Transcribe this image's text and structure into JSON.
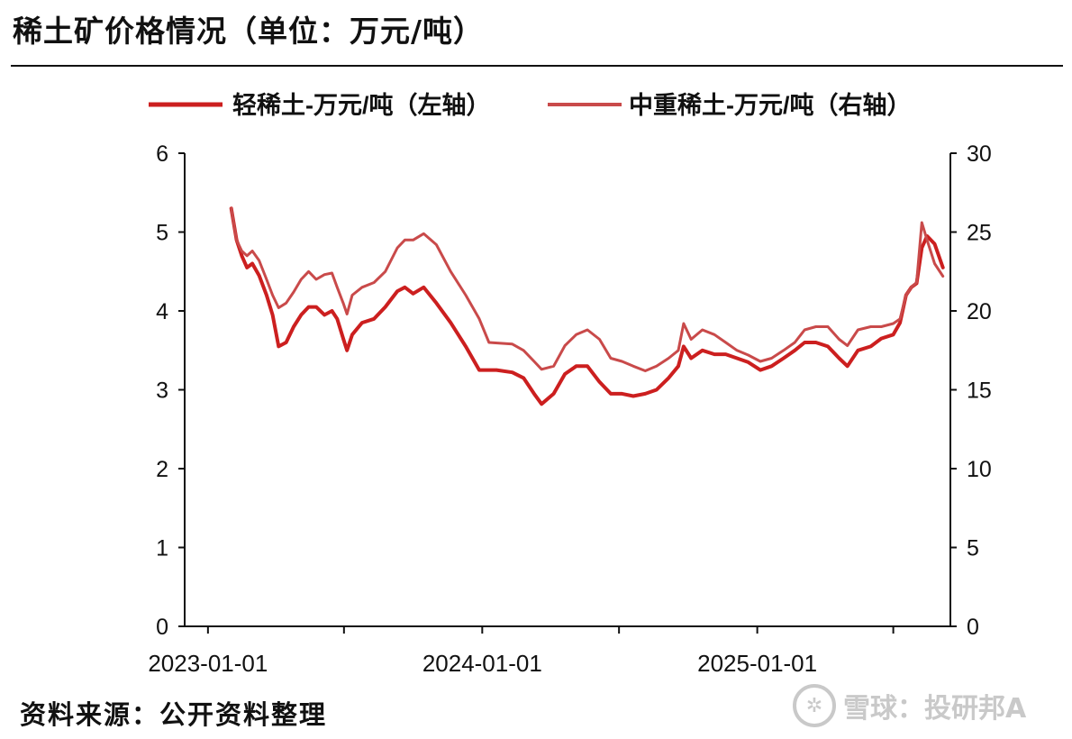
{
  "title": "稀土矿价格情况（单位：万元/吨）",
  "source": "资料来源：公开资料整理",
  "watermark": {
    "logo_icon": "snowball-logo-icon",
    "text": "雪球：投研邦A"
  },
  "colors": {
    "light_series": "#cc1f1f",
    "heavy_series": "#c94a4a",
    "axis": "#111111"
  },
  "chart_data": {
    "type": "line",
    "title": "",
    "legend_position": "top-center",
    "grid": false,
    "x_tick_labels": [
      "2023-01-01",
      "2024-01-01",
      "2025-01-01"
    ],
    "x_ticks": [
      "2023-01-01",
      "2023-07-01",
      "2024-01-01",
      "2024-07-01",
      "2025-01-01",
      "2025-07-01"
    ],
    "xlim": [
      "2022-12-01",
      "2025-09-15"
    ],
    "y_left": {
      "lim": [
        0,
        6
      ],
      "ticks": [
        0,
        1,
        2,
        3,
        4,
        5,
        6
      ]
    },
    "y_right": {
      "lim": [
        0,
        30
      ],
      "ticks": [
        0,
        5,
        10,
        15,
        20,
        25,
        30
      ]
    },
    "series": [
      {
        "name": "轻稀土-万元/吨（左轴）",
        "axis": "left",
        "points": [
          [
            "2023-02-01",
            5.3
          ],
          [
            "2023-02-08",
            4.9
          ],
          [
            "2023-02-15",
            4.7
          ],
          [
            "2023-02-22",
            4.55
          ],
          [
            "2023-03-01",
            4.6
          ],
          [
            "2023-03-10",
            4.45
          ],
          [
            "2023-03-20",
            4.2
          ],
          [
            "2023-03-28",
            3.95
          ],
          [
            "2023-04-05",
            3.55
          ],
          [
            "2023-04-15",
            3.6
          ],
          [
            "2023-04-25",
            3.8
          ],
          [
            "2023-05-05",
            3.95
          ],
          [
            "2023-05-15",
            4.05
          ],
          [
            "2023-05-25",
            4.05
          ],
          [
            "2023-06-05",
            3.95
          ],
          [
            "2023-06-15",
            4.0
          ],
          [
            "2023-06-22",
            3.9
          ],
          [
            "2023-06-30",
            3.65
          ],
          [
            "2023-07-05",
            3.5
          ],
          [
            "2023-07-12",
            3.7
          ],
          [
            "2023-07-25",
            3.85
          ],
          [
            "2023-08-10",
            3.9
          ],
          [
            "2023-08-25",
            4.05
          ],
          [
            "2023-09-10",
            4.25
          ],
          [
            "2023-09-20",
            4.3
          ],
          [
            "2023-10-01",
            4.22
          ],
          [
            "2023-10-15",
            4.3
          ],
          [
            "2023-11-01",
            4.1
          ],
          [
            "2023-11-20",
            3.85
          ],
          [
            "2023-12-10",
            3.55
          ],
          [
            "2023-12-28",
            3.25
          ],
          [
            "2024-01-20",
            3.25
          ],
          [
            "2024-02-10",
            3.22
          ],
          [
            "2024-02-25",
            3.15
          ],
          [
            "2024-03-10",
            2.95
          ],
          [
            "2024-03-20",
            2.82
          ],
          [
            "2024-04-05",
            2.95
          ],
          [
            "2024-04-20",
            3.2
          ],
          [
            "2024-05-05",
            3.3
          ],
          [
            "2024-05-20",
            3.3
          ],
          [
            "2024-06-05",
            3.1
          ],
          [
            "2024-06-20",
            2.95
          ],
          [
            "2024-07-05",
            2.95
          ],
          [
            "2024-07-20",
            2.92
          ],
          [
            "2024-08-05",
            2.95
          ],
          [
            "2024-08-20",
            3.0
          ],
          [
            "2024-09-05",
            3.15
          ],
          [
            "2024-09-18",
            3.3
          ],
          [
            "2024-09-25",
            3.55
          ],
          [
            "2024-10-05",
            3.4
          ],
          [
            "2024-10-20",
            3.5
          ],
          [
            "2024-11-05",
            3.45
          ],
          [
            "2024-11-20",
            3.45
          ],
          [
            "2024-12-05",
            3.4
          ],
          [
            "2024-12-20",
            3.35
          ],
          [
            "2025-01-05",
            3.25
          ],
          [
            "2025-01-20",
            3.3
          ],
          [
            "2025-02-05",
            3.4
          ],
          [
            "2025-02-20",
            3.5
          ],
          [
            "2025-03-05",
            3.6
          ],
          [
            "2025-03-20",
            3.6
          ],
          [
            "2025-04-05",
            3.55
          ],
          [
            "2025-04-20",
            3.4
          ],
          [
            "2025-05-01",
            3.3
          ],
          [
            "2025-05-15",
            3.5
          ],
          [
            "2025-06-01",
            3.55
          ],
          [
            "2025-06-15",
            3.65
          ],
          [
            "2025-07-01",
            3.7
          ],
          [
            "2025-07-10",
            3.85
          ],
          [
            "2025-07-18",
            4.2
          ],
          [
            "2025-07-25",
            4.3
          ],
          [
            "2025-08-01",
            4.35
          ],
          [
            "2025-08-08",
            4.8
          ],
          [
            "2025-08-15",
            4.95
          ],
          [
            "2025-08-25",
            4.85
          ],
          [
            "2025-09-05",
            4.55
          ]
        ]
      },
      {
        "name": "中重稀土-万元/吨（右轴）",
        "axis": "right",
        "points": [
          [
            "2023-02-01",
            26.5
          ],
          [
            "2023-02-08",
            24.5
          ],
          [
            "2023-02-15",
            23.8
          ],
          [
            "2023-02-22",
            23.5
          ],
          [
            "2023-03-01",
            23.8
          ],
          [
            "2023-03-10",
            23.2
          ],
          [
            "2023-03-20",
            22.0
          ],
          [
            "2023-03-28",
            21.0
          ],
          [
            "2023-04-05",
            20.2
          ],
          [
            "2023-04-15",
            20.5
          ],
          [
            "2023-04-25",
            21.2
          ],
          [
            "2023-05-05",
            22.0
          ],
          [
            "2023-05-15",
            22.5
          ],
          [
            "2023-05-25",
            22.0
          ],
          [
            "2023-06-05",
            22.3
          ],
          [
            "2023-06-15",
            22.4
          ],
          [
            "2023-06-22",
            21.5
          ],
          [
            "2023-06-30",
            20.5
          ],
          [
            "2023-07-05",
            19.8
          ],
          [
            "2023-07-12",
            21.0
          ],
          [
            "2023-07-25",
            21.5
          ],
          [
            "2023-08-10",
            21.8
          ],
          [
            "2023-08-25",
            22.5
          ],
          [
            "2023-09-10",
            24.0
          ],
          [
            "2023-09-20",
            24.5
          ],
          [
            "2023-10-01",
            24.5
          ],
          [
            "2023-10-15",
            24.9
          ],
          [
            "2023-11-01",
            24.2
          ],
          [
            "2023-11-20",
            22.5
          ],
          [
            "2023-12-10",
            21.0
          ],
          [
            "2023-12-28",
            19.5
          ],
          [
            "2024-01-10",
            18.0
          ],
          [
            "2024-02-10",
            17.9
          ],
          [
            "2024-02-25",
            17.5
          ],
          [
            "2024-03-10",
            16.8
          ],
          [
            "2024-03-20",
            16.3
          ],
          [
            "2024-04-05",
            16.5
          ],
          [
            "2024-04-20",
            17.8
          ],
          [
            "2024-05-05",
            18.5
          ],
          [
            "2024-05-20",
            18.8
          ],
          [
            "2024-06-05",
            18.2
          ],
          [
            "2024-06-20",
            17.0
          ],
          [
            "2024-07-05",
            16.8
          ],
          [
            "2024-07-20",
            16.5
          ],
          [
            "2024-08-05",
            16.2
          ],
          [
            "2024-08-20",
            16.5
          ],
          [
            "2024-09-05",
            17.0
          ],
          [
            "2024-09-18",
            17.5
          ],
          [
            "2024-09-25",
            19.2
          ],
          [
            "2024-10-05",
            18.2
          ],
          [
            "2024-10-20",
            18.8
          ],
          [
            "2024-11-05",
            18.5
          ],
          [
            "2024-11-20",
            18.0
          ],
          [
            "2024-12-05",
            17.5
          ],
          [
            "2024-12-20",
            17.2
          ],
          [
            "2025-01-05",
            16.8
          ],
          [
            "2025-01-20",
            17.0
          ],
          [
            "2025-02-05",
            17.5
          ],
          [
            "2025-02-20",
            18.0
          ],
          [
            "2025-03-05",
            18.8
          ],
          [
            "2025-03-20",
            19.0
          ],
          [
            "2025-04-05",
            19.0
          ],
          [
            "2025-04-20",
            18.2
          ],
          [
            "2025-05-01",
            17.8
          ],
          [
            "2025-05-15",
            18.8
          ],
          [
            "2025-06-01",
            19.0
          ],
          [
            "2025-06-15",
            19.0
          ],
          [
            "2025-07-01",
            19.2
          ],
          [
            "2025-07-10",
            19.5
          ],
          [
            "2025-07-18",
            21.0
          ],
          [
            "2025-07-25",
            21.5
          ],
          [
            "2025-08-01",
            21.8
          ],
          [
            "2025-08-08",
            25.6
          ],
          [
            "2025-08-15",
            24.5
          ],
          [
            "2025-08-25",
            23.0
          ],
          [
            "2025-09-05",
            22.2
          ]
        ]
      }
    ]
  }
}
